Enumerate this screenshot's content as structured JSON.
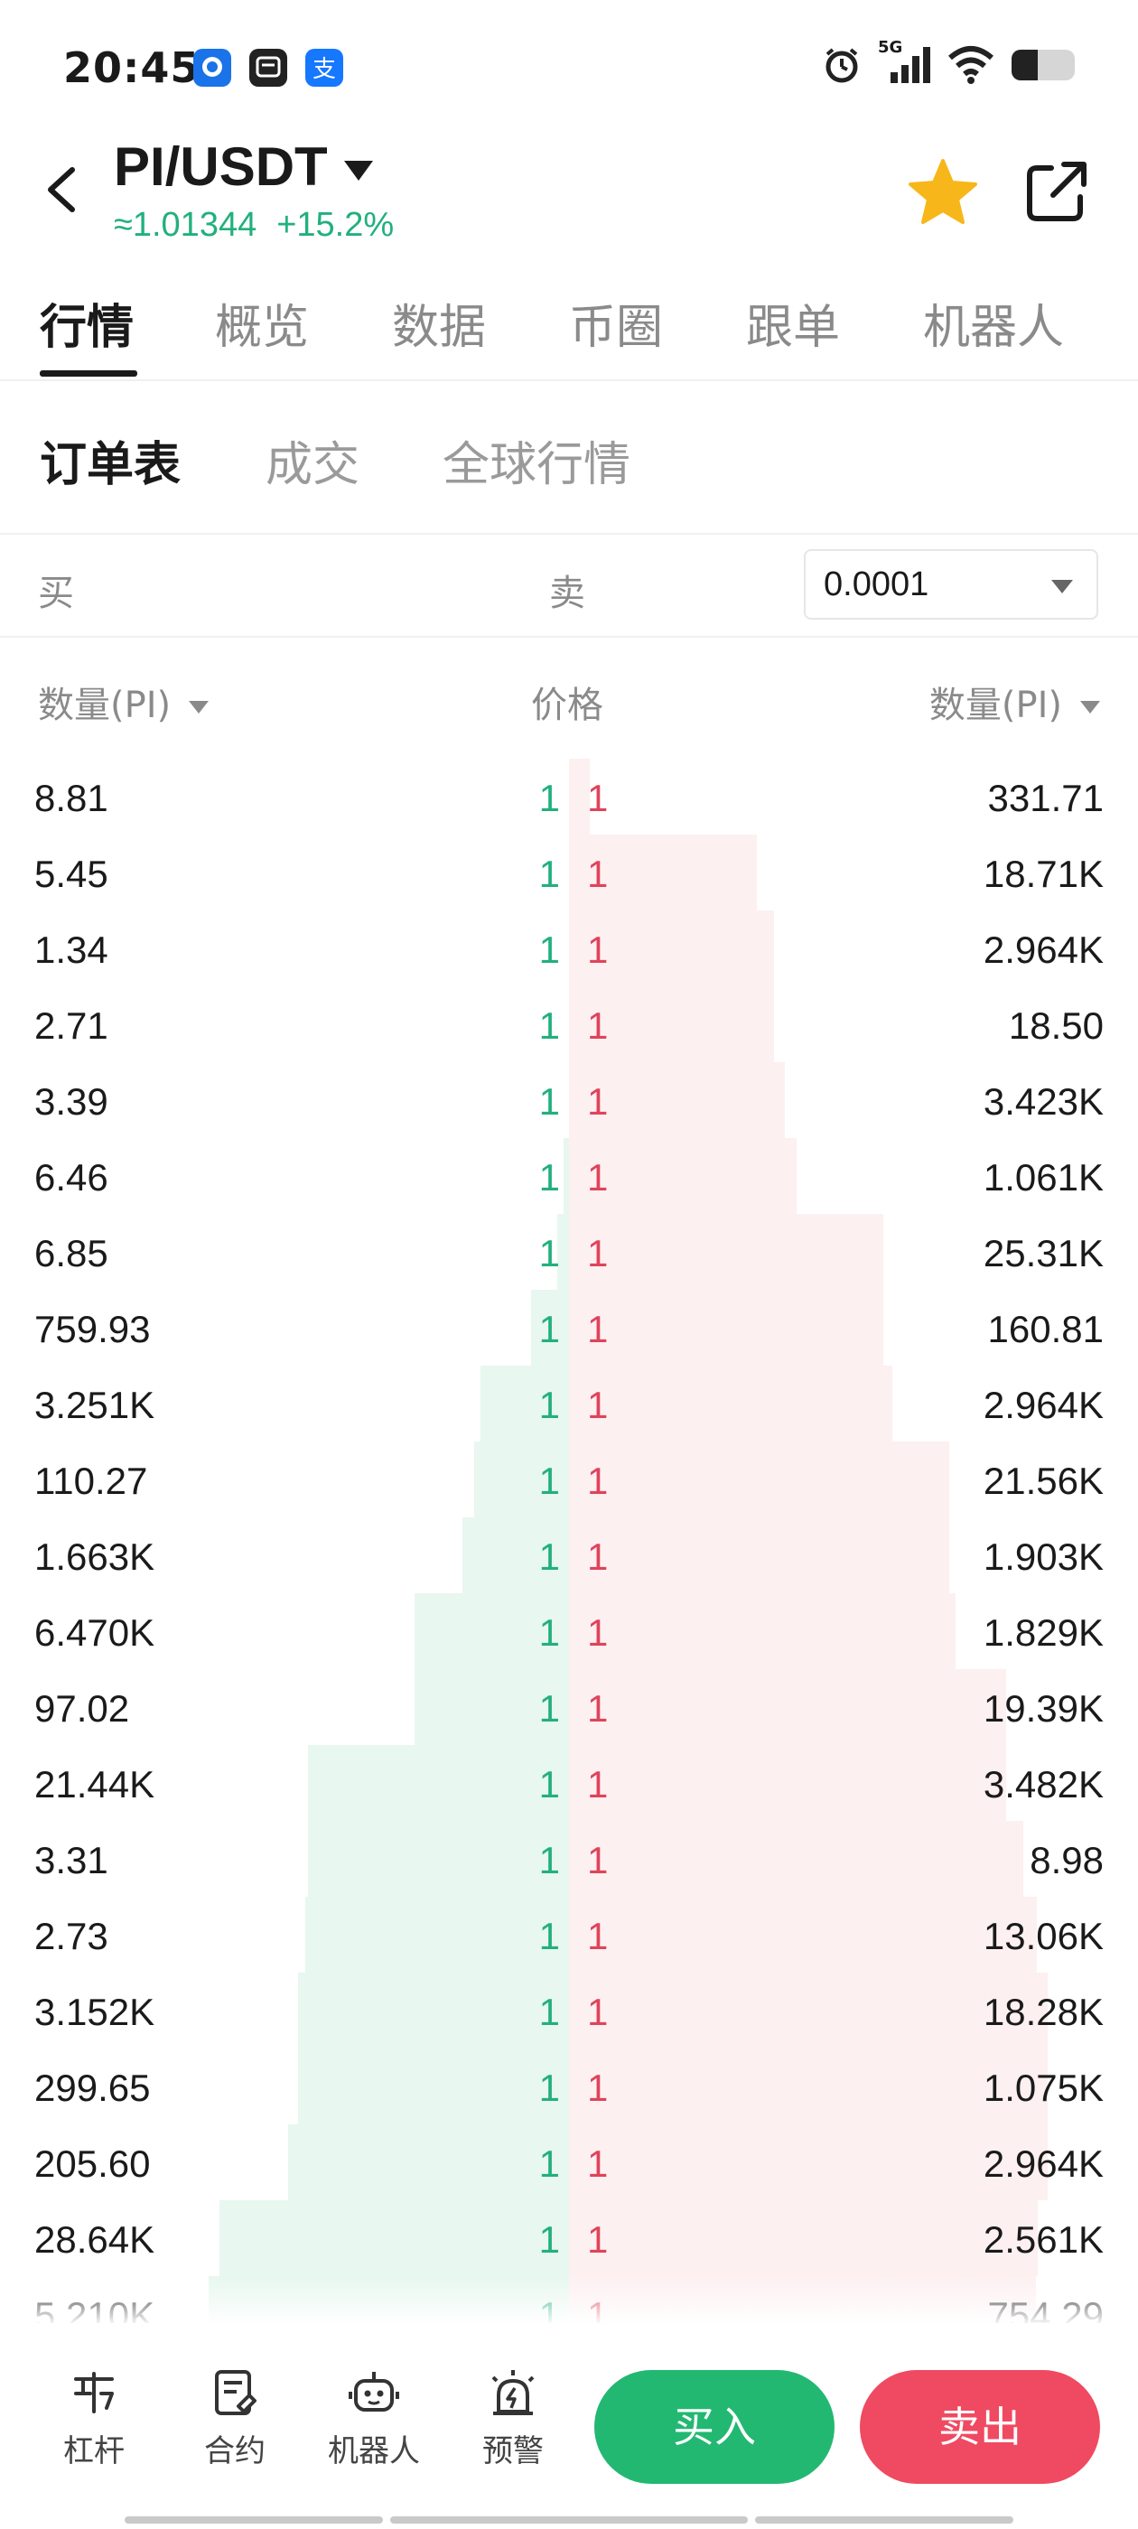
{
  "status_bar": {
    "time": "20:45",
    "network": "5G",
    "battery_level": 0.42
  },
  "header": {
    "pair": "PI/USDT",
    "price": "≈1.01344",
    "change": "+15.2%"
  },
  "main_tabs": [
    "行情",
    "概览",
    "数据",
    "币圈",
    "跟单",
    "机器人"
  ],
  "sub_tabs": [
    "订单表",
    "成交",
    "全球行情"
  ],
  "book_header": {
    "buy_label": "买",
    "sell_label": "卖",
    "precision": "0.0001"
  },
  "columns": {
    "buy_qty": "数量(PI)",
    "price": "价格",
    "sell_qty": "数量(PI)"
  },
  "order_book": {
    "rows": [
      {
        "buy_qty": "8.81",
        "buy_price": "1",
        "sell_price": "1",
        "sell_qty": "331.71"
      },
      {
        "buy_qty": "5.45",
        "buy_price": "1",
        "sell_price": "1",
        "sell_qty": "18.71K"
      },
      {
        "buy_qty": "1.34",
        "buy_price": "1",
        "sell_price": "1",
        "sell_qty": "2.964K"
      },
      {
        "buy_qty": "2.71",
        "buy_price": "1",
        "sell_price": "1",
        "sell_qty": "18.50"
      },
      {
        "buy_qty": "3.39",
        "buy_price": "1",
        "sell_price": "1",
        "sell_qty": "3.423K"
      },
      {
        "buy_qty": "6.46",
        "buy_price": "1",
        "sell_price": "1",
        "sell_qty": "1.061K"
      },
      {
        "buy_qty": "6.85",
        "buy_price": "1",
        "sell_price": "1",
        "sell_qty": "25.31K"
      },
      {
        "buy_qty": "759.93",
        "buy_price": "1",
        "sell_price": "1",
        "sell_qty": "160.81"
      },
      {
        "buy_qty": "3.251K",
        "buy_price": "1",
        "sell_price": "1",
        "sell_qty": "2.964K"
      },
      {
        "buy_qty": "110.27",
        "buy_price": "1",
        "sell_price": "1",
        "sell_qty": "21.56K"
      },
      {
        "buy_qty": "1.663K",
        "buy_price": "1",
        "sell_price": "1",
        "sell_qty": "1.903K"
      },
      {
        "buy_qty": "6.470K",
        "buy_price": "1",
        "sell_price": "1",
        "sell_qty": "1.829K"
      },
      {
        "buy_qty": "97.02",
        "buy_price": "1",
        "sell_price": "1",
        "sell_qty": "19.39K"
      },
      {
        "buy_qty": "21.44K",
        "buy_price": "1",
        "sell_price": "1",
        "sell_qty": "3.482K"
      },
      {
        "buy_qty": "3.31",
        "buy_price": "1",
        "sell_price": "1",
        "sell_qty": "8.98"
      },
      {
        "buy_qty": "2.73",
        "buy_price": "1",
        "sell_price": "1",
        "sell_qty": "13.06K"
      },
      {
        "buy_qty": "3.152K",
        "buy_price": "1",
        "sell_price": "1",
        "sell_qty": "18.28K"
      },
      {
        "buy_qty": "299.65",
        "buy_price": "1",
        "sell_price": "1",
        "sell_qty": "1.075K"
      },
      {
        "buy_qty": "205.60",
        "buy_price": "1",
        "sell_price": "1",
        "sell_qty": "2.964K"
      },
      {
        "buy_qty": "28.64K",
        "buy_price": "1",
        "sell_price": "1",
        "sell_qty": "2.561K"
      },
      {
        "buy_qty": "5.210K",
        "buy_price": "1",
        "sell_price": "1",
        "sell_qty": "754.29"
      }
    ],
    "buy_depth_fraction": [
      0.0,
      0.0,
      0.0,
      0.0,
      0.0,
      0.005,
      0.01,
      0.033,
      0.078,
      0.083,
      0.094,
      0.136,
      0.136,
      0.229,
      0.229,
      0.232,
      0.238,
      0.238,
      0.247,
      0.307,
      0.317
    ],
    "sell_depth_fraction": [
      0.018,
      0.165,
      0.18,
      0.18,
      0.19,
      0.2,
      0.276,
      0.276,
      0.284,
      0.334,
      0.334,
      0.34,
      0.384,
      0.384,
      0.399,
      0.411,
      0.421,
      0.421,
      0.421,
      0.412,
      0.41
    ]
  },
  "bottom_bar": {
    "tools": [
      "杠杆",
      "合约",
      "机器人",
      "预警"
    ],
    "buy_button": "买入",
    "sell_button": "卖出"
  },
  "colors": {
    "up": "#22b07d",
    "down": "#e0435a",
    "buy_button": "#22b872",
    "sell_button": "#ef4a61"
  }
}
